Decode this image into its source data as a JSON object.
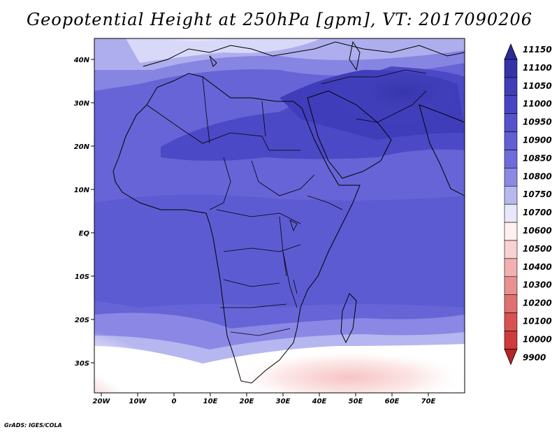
{
  "title": "Geopotential Height at 250hPa [gpm], VT: 2017090206",
  "credit": "GrADS: IGES/COLA",
  "x_ticks": [
    "20W",
    "10W",
    "0",
    "10E",
    "20E",
    "30E",
    "40E",
    "50E",
    "60E",
    "70E"
  ],
  "y_ticks": [
    "40N",
    "30N",
    "20N",
    "10N",
    "EQ",
    "10S",
    "20S",
    "30S"
  ],
  "colorbar": {
    "labels": [
      "11150",
      "11100",
      "11050",
      "11000",
      "10950",
      "10900",
      "10850",
      "10800",
      "10750",
      "10700",
      "10600",
      "10500",
      "10400",
      "10300",
      "10200",
      "10100",
      "10000",
      "9900"
    ],
    "colors": [
      "#2b2a96",
      "#3533a8",
      "#3f3db8",
      "#4845c4",
      "#5552cc",
      "#615fd4",
      "#6e6cdb",
      "#8b8ae3",
      "#b8b8f0",
      "#e8e8fb",
      "#fff0f0",
      "#f9d3d3",
      "#f2b0b0",
      "#e99191",
      "#e07171",
      "#d85252",
      "#cf3a3a",
      "#b72525"
    ]
  }
}
